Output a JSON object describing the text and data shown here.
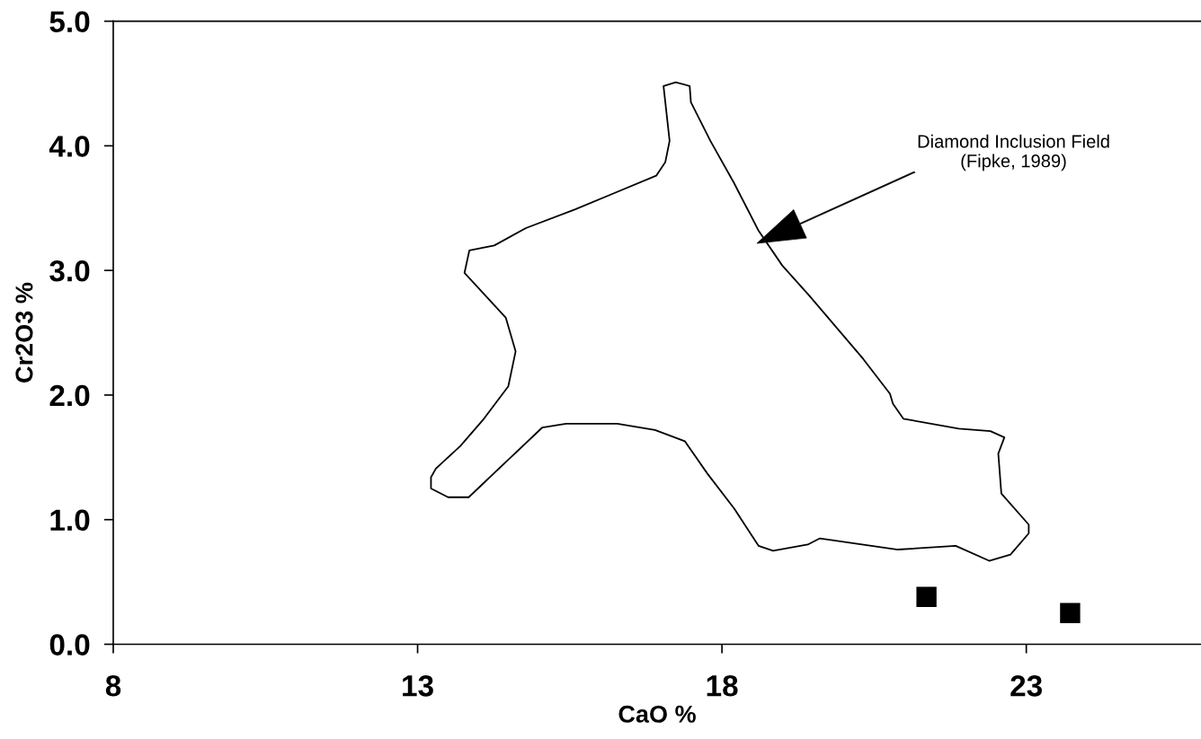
{
  "chart_data": {
    "type": "scatter",
    "xlabel": "CaO %",
    "ylabel": "Cr2O3 %",
    "xlim": [
      8,
      25.87
    ],
    "xticks": [
      8,
      13,
      18,
      23
    ],
    "ylim": [
      0,
      5
    ],
    "yticks": [
      {
        "value": 0,
        "label": "0.0"
      },
      {
        "value": 1,
        "label": "1.0"
      },
      {
        "value": 2,
        "label": "2.0"
      },
      {
        "value": 3,
        "label": "3.0"
      },
      {
        "value": 4,
        "label": "4.0"
      },
      {
        "value": 5,
        "label": "5.0"
      }
    ],
    "grid": false,
    "series": [
      {
        "type": "line",
        "color": "#000000",
        "line_style": "solid",
        "x": [
          17.04,
          17.24,
          17.47,
          17.49,
          17.81,
          18.2,
          18.6,
          18.99,
          19.43,
          20.32,
          20.76,
          20.81,
          20.98,
          21.89,
          22.41,
          22.64,
          22.54,
          22.59,
          23.04,
          23.04,
          22.74,
          22.39,
          21.84,
          20.89,
          19.61,
          19.41,
          18.84,
          18.6,
          18.2,
          17.76,
          17.39,
          16.9,
          16.28,
          15.44,
          15.05,
          14.51,
          13.84,
          13.5,
          13.22,
          13.22,
          13.3,
          13.7,
          14.09,
          14.49,
          14.61,
          14.45,
          13.77,
          13.85,
          14.26,
          14.78,
          15.59,
          16.18,
          16.92,
          17.07,
          17.14,
          17.04,
          17.24
        ],
        "values": [
          4.48,
          4.51,
          4.48,
          4.35,
          4.04,
          3.7,
          3.32,
          3.04,
          2.8,
          2.29,
          2.01,
          1.93,
          1.81,
          1.73,
          1.71,
          1.66,
          1.53,
          1.21,
          0.96,
          0.89,
          0.72,
          0.67,
          0.79,
          0.76,
          0.85,
          0.8,
          0.75,
          0.79,
          1.09,
          1.37,
          1.63,
          1.72,
          1.77,
          1.77,
          1.74,
          1.49,
          1.18,
          1.18,
          1.25,
          1.34,
          1.41,
          1.59,
          1.81,
          2.07,
          2.35,
          2.62,
          2.98,
          3.16,
          3.2,
          3.34,
          3.49,
          3.61,
          3.76,
          3.87,
          4.04,
          4.48,
          4.51
        ]
      },
      {
        "color": "#000000",
        "marker": "square",
        "x": [
          21.36,
          23.72
        ],
        "values": [
          0.38,
          0.25
        ]
      }
    ],
    "annotations": [
      "Diamond Inclusion Field\n(Fipke, 1989)"
    ]
  }
}
